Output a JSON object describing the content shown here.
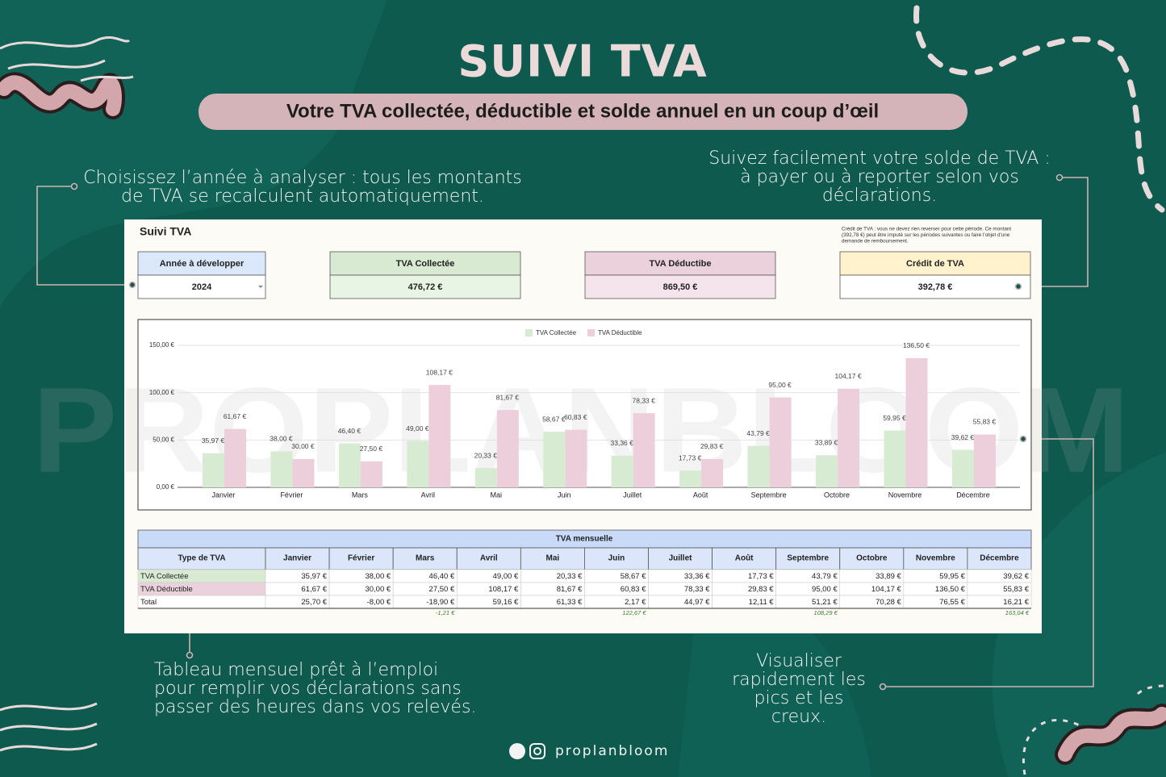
{
  "header": {
    "title": "SUIVI TVA",
    "subtitle": "Votre TVA collectée, déductible et solde annuel en un coup d’œil"
  },
  "callouts": [
    [
      "Choisissez l’année à analyser : tous les montants",
      "de TVA se recalculent automatiquement."
    ],
    [
      "Suivez facilement votre solde de TVA :",
      "à payer ou à reporter selon vos",
      "déclarations."
    ],
    [
      "Tableau mensuel prêt à l’emploi",
      "pour remplir vos déclarations sans",
      "passer des heures dans vos relevés."
    ],
    [
      "Visualiser",
      "rapidement les",
      "pics et les",
      "creux."
    ]
  ],
  "sheet": {
    "title": "Suivi TVA",
    "note": [
      "Crédit de TVA : vous ne devez rien reverser pour cette période. Ce montant",
      "(392,78 €) peut être imputé sur les périodes suivantes ou faire l'objet d'une",
      "demande de remboursement."
    ],
    "cards": [
      {
        "label": "Année à développer",
        "value": "2024"
      },
      {
        "label": "TVA Collectée",
        "value": "476,72 €"
      },
      {
        "label": "TVA Déductibe",
        "value": "869,50 €"
      },
      {
        "label": "Crédit de TVA",
        "value": "392,78 €"
      }
    ],
    "watermark": "PROPLANBLOOM"
  },
  "chart_data": {
    "type": "bar",
    "categories": [
      "Janvier",
      "Février",
      "Mars",
      "Avril",
      "Mai",
      "Juin",
      "Juillet",
      "Août",
      "Septembre",
      "Octobre",
      "Novembre",
      "Décembre"
    ],
    "series": [
      {
        "name": "TVA Collectée",
        "color": "#d6ebd2",
        "values": [
          35.97,
          38.0,
          46.4,
          49.0,
          20.33,
          58.67,
          33.36,
          17.73,
          43.79,
          33.89,
          59.95,
          39.62
        ],
        "value_labels": [
          "35,97 €",
          "38,00 €",
          "46,40 €",
          "49,00 €",
          "20,33 €",
          "58,67 €",
          "33,36 €",
          "17,73 €",
          "43,79 €",
          "33,89 €",
          "59,95 €",
          "39,62 €"
        ]
      },
      {
        "name": "TVA Déductible",
        "color": "#eccfdb",
        "values": [
          61.67,
          30.0,
          27.5,
          108.17,
          81.67,
          60.83,
          78.33,
          29.83,
          95.0,
          104.17,
          136.5,
          55.83
        ],
        "value_labels": [
          "61,67 €",
          "30,00 €",
          "27,50 €",
          "108,17 €",
          "81,67 €",
          "60,83 €",
          "78,33 €",
          "29,83 €",
          "95,00 €",
          "104,17 €",
          "136,50 €",
          "55,83 €"
        ]
      }
    ],
    "ylim": [
      0,
      150
    ],
    "yticks": [
      {
        "value": 0,
        "label": "0,00 €"
      },
      {
        "value": 50,
        "label": "50,00 €"
      },
      {
        "value": 100,
        "label": "100,00 €"
      },
      {
        "value": 150,
        "label": "150,00 €"
      }
    ],
    "grid": true,
    "legend": "top"
  },
  "table": {
    "title": "TVA mensuelle",
    "columns": [
      "Type de TVA",
      "Janvier",
      "Février",
      "Mars",
      "Avril",
      "Mai",
      "Juin",
      "Juillet",
      "Août",
      "Septembre",
      "Octobre",
      "Novembre",
      "Décembre"
    ],
    "rows": [
      {
        "label": "TVA Collectée",
        "cells": [
          "35,97 €",
          "38,00 €",
          "46,40 €",
          "49,00 €",
          "20,33 €",
          "58,67 €",
          "33,36 €",
          "17,73 €",
          "43,79 €",
          "33,89 €",
          "59,95 €",
          "39,62 €"
        ]
      },
      {
        "label": "TVA Déductible",
        "cells": [
          "61,67 €",
          "30,00 €",
          "27,50 €",
          "108,17 €",
          "81,67 €",
          "60,83 €",
          "78,33 €",
          "29,83 €",
          "95,00 €",
          "104,17 €",
          "136,50 €",
          "55,83 €"
        ]
      },
      {
        "label": "Total",
        "cells": [
          "25,70 €",
          "-8,00 €",
          "-18,90 €",
          "59,16 €",
          "61,33 €",
          "2,17 €",
          "44,97 €",
          "12,11 €",
          "51,21 €",
          "70,28 €",
          "76,55 €",
          "16,21 €"
        ]
      }
    ],
    "quarter_totals": [
      null,
      null,
      "-1,21 €",
      null,
      null,
      "122,67 €",
      null,
      null,
      "108,29 €",
      null,
      null,
      "163,04 €"
    ]
  },
  "footer": {
    "handle": "proplanbloom"
  }
}
